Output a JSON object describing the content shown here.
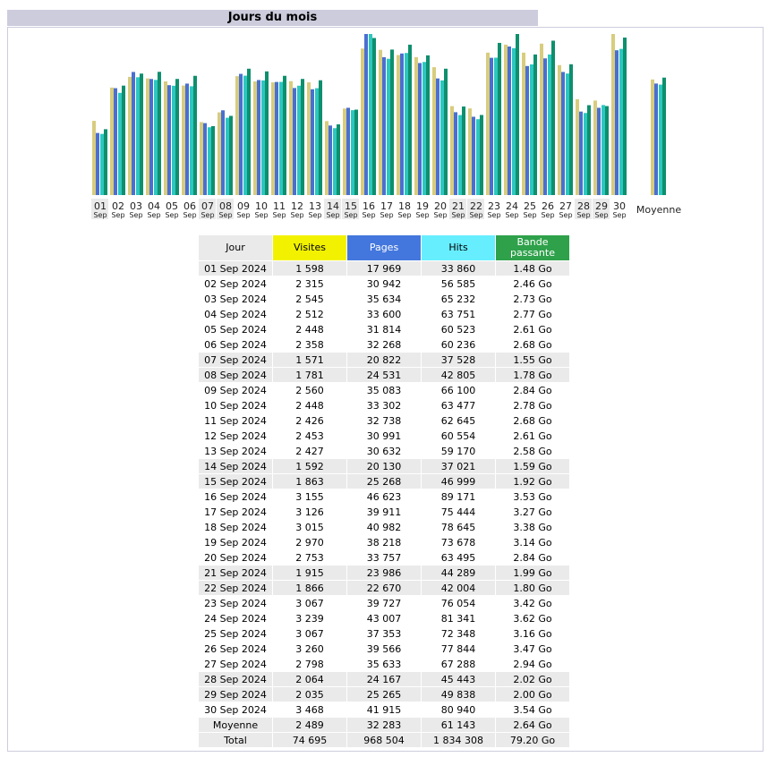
{
  "section_title": "Jours du mois",
  "colors": {
    "visites": "#d8cc7e",
    "pages": "#4a6fd1",
    "hits": "#2cc7c0",
    "bande": "#0e8f6d",
    "weekend": "#eaeaea"
  },
  "table": {
    "headers": [
      "Jour",
      "Visites",
      "Pages",
      "Hits",
      "Bande passante"
    ],
    "rows": [
      {
        "day": "01 Sep 2024",
        "visites": "1 598",
        "pages": "17 969",
        "hits": "33 860",
        "bande": "1.48 Go",
        "weekend": true
      },
      {
        "day": "02 Sep 2024",
        "visites": "2 315",
        "pages": "30 942",
        "hits": "56 585",
        "bande": "2.46 Go",
        "weekend": false
      },
      {
        "day": "03 Sep 2024",
        "visites": "2 545",
        "pages": "35 634",
        "hits": "65 232",
        "bande": "2.73 Go",
        "weekend": false
      },
      {
        "day": "04 Sep 2024",
        "visites": "2 512",
        "pages": "33 600",
        "hits": "63 751",
        "bande": "2.77 Go",
        "weekend": false
      },
      {
        "day": "05 Sep 2024",
        "visites": "2 448",
        "pages": "31 814",
        "hits": "60 523",
        "bande": "2.61 Go",
        "weekend": false
      },
      {
        "day": "06 Sep 2024",
        "visites": "2 358",
        "pages": "32 268",
        "hits": "60 236",
        "bande": "2.68 Go",
        "weekend": false
      },
      {
        "day": "07 Sep 2024",
        "visites": "1 571",
        "pages": "20 822",
        "hits": "37 528",
        "bande": "1.55 Go",
        "weekend": true
      },
      {
        "day": "08 Sep 2024",
        "visites": "1 781",
        "pages": "24 531",
        "hits": "42 805",
        "bande": "1.78 Go",
        "weekend": true
      },
      {
        "day": "09 Sep 2024",
        "visites": "2 560",
        "pages": "35 083",
        "hits": "66 100",
        "bande": "2.84 Go",
        "weekend": false
      },
      {
        "day": "10 Sep 2024",
        "visites": "2 448",
        "pages": "33 302",
        "hits": "63 477",
        "bande": "2.78 Go",
        "weekend": false
      },
      {
        "day": "11 Sep 2024",
        "visites": "2 426",
        "pages": "32 738",
        "hits": "62 645",
        "bande": "2.68 Go",
        "weekend": false
      },
      {
        "day": "12 Sep 2024",
        "visites": "2 453",
        "pages": "30 991",
        "hits": "60 554",
        "bande": "2.61 Go",
        "weekend": false
      },
      {
        "day": "13 Sep 2024",
        "visites": "2 427",
        "pages": "30 632",
        "hits": "59 170",
        "bande": "2.58 Go",
        "weekend": false
      },
      {
        "day": "14 Sep 2024",
        "visites": "1 592",
        "pages": "20 130",
        "hits": "37 021",
        "bande": "1.59 Go",
        "weekend": true
      },
      {
        "day": "15 Sep 2024",
        "visites": "1 863",
        "pages": "25 268",
        "hits": "46 999",
        "bande": "1.92 Go",
        "weekend": true
      },
      {
        "day": "16 Sep 2024",
        "visites": "3 155",
        "pages": "46 623",
        "hits": "89 171",
        "bande": "3.53 Go",
        "weekend": false
      },
      {
        "day": "17 Sep 2024",
        "visites": "3 126",
        "pages": "39 911",
        "hits": "75 444",
        "bande": "3.27 Go",
        "weekend": false
      },
      {
        "day": "18 Sep 2024",
        "visites": "3 015",
        "pages": "40 982",
        "hits": "78 645",
        "bande": "3.38 Go",
        "weekend": false
      },
      {
        "day": "19 Sep 2024",
        "visites": "2 970",
        "pages": "38 218",
        "hits": "73 678",
        "bande": "3.14 Go",
        "weekend": false
      },
      {
        "day": "20 Sep 2024",
        "visites": "2 753",
        "pages": "33 757",
        "hits": "63 495",
        "bande": "2.84 Go",
        "weekend": false
      },
      {
        "day": "21 Sep 2024",
        "visites": "1 915",
        "pages": "23 986",
        "hits": "44 289",
        "bande": "1.99 Go",
        "weekend": true
      },
      {
        "day": "22 Sep 2024",
        "visites": "1 866",
        "pages": "22 670",
        "hits": "42 004",
        "bande": "1.80 Go",
        "weekend": true
      },
      {
        "day": "23 Sep 2024",
        "visites": "3 067",
        "pages": "39 727",
        "hits": "76 054",
        "bande": "3.42 Go",
        "weekend": false
      },
      {
        "day": "24 Sep 2024",
        "visites": "3 239",
        "pages": "43 007",
        "hits": "81 341",
        "bande": "3.62 Go",
        "weekend": false
      },
      {
        "day": "25 Sep 2024",
        "visites": "3 067",
        "pages": "37 353",
        "hits": "72 348",
        "bande": "3.16 Go",
        "weekend": false
      },
      {
        "day": "26 Sep 2024",
        "visites": "3 260",
        "pages": "39 566",
        "hits": "77 844",
        "bande": "3.47 Go",
        "weekend": false
      },
      {
        "day": "27 Sep 2024",
        "visites": "2 798",
        "pages": "35 633",
        "hits": "67 288",
        "bande": "2.94 Go",
        "weekend": false
      },
      {
        "day": "28 Sep 2024",
        "visites": "2 064",
        "pages": "24 167",
        "hits": "45 443",
        "bande": "2.02 Go",
        "weekend": true
      },
      {
        "day": "29 Sep 2024",
        "visites": "2 035",
        "pages": "25 265",
        "hits": "49 838",
        "bande": "2.00 Go",
        "weekend": true
      },
      {
        "day": "30 Sep 2024",
        "visites": "3 468",
        "pages": "41 915",
        "hits": "80 940",
        "bande": "3.54 Go",
        "weekend": false
      }
    ],
    "average": {
      "day": "Moyenne",
      "visites": "2 489",
      "pages": "32 283",
      "hits": "61 143",
      "bande": "2.64 Go"
    },
    "total": {
      "day": "Total",
      "visites": "74 695",
      "pages": "968 504",
      "hits": "1 834 308",
      "bande": "79.20 Go"
    }
  },
  "chart_data": {
    "type": "bar",
    "categories": [
      "01",
      "02",
      "03",
      "04",
      "05",
      "06",
      "07",
      "08",
      "09",
      "10",
      "11",
      "12",
      "13",
      "14",
      "15",
      "16",
      "17",
      "18",
      "19",
      "20",
      "21",
      "22",
      "23",
      "24",
      "25",
      "26",
      "27",
      "28",
      "29",
      "30"
    ],
    "category_sublabel": "Sep",
    "weekend_days": [
      "01",
      "07",
      "08",
      "14",
      "15",
      "21",
      "22",
      "28",
      "29"
    ],
    "average_label": "Moyenne",
    "series": [
      {
        "name": "Visites",
        "values": [
          1598,
          2315,
          2545,
          2512,
          2448,
          2358,
          1571,
          1781,
          2560,
          2448,
          2426,
          2453,
          2427,
          1592,
          1863,
          3155,
          3126,
          3015,
          2970,
          2753,
          1915,
          1866,
          3067,
          3239,
          3067,
          3260,
          2798,
          2064,
          2035,
          3468
        ],
        "average": 2489
      },
      {
        "name": "Pages",
        "values": [
          17969,
          30942,
          35634,
          33600,
          31814,
          32268,
          20822,
          24531,
          35083,
          33302,
          32738,
          30991,
          30632,
          20130,
          25268,
          46623,
          39911,
          40982,
          38218,
          33757,
          23986,
          22670,
          39727,
          43007,
          37353,
          39566,
          35633,
          24167,
          25265,
          41915
        ],
        "average": 32283
      },
      {
        "name": "Hits",
        "values": [
          33860,
          56585,
          65232,
          63751,
          60523,
          60236,
          37528,
          42805,
          66100,
          63477,
          62645,
          60554,
          59170,
          37021,
          46999,
          89171,
          75444,
          78645,
          73678,
          63495,
          44289,
          42004,
          76054,
          81341,
          72348,
          77844,
          67288,
          45443,
          49838,
          80940
        ],
        "average": 61143
      },
      {
        "name": "Bande passante",
        "values": [
          1.48,
          2.46,
          2.73,
          2.77,
          2.61,
          2.68,
          1.55,
          1.78,
          2.84,
          2.78,
          2.68,
          2.61,
          2.58,
          1.59,
          1.92,
          3.53,
          3.27,
          3.38,
          3.14,
          2.84,
          1.99,
          1.8,
          3.42,
          3.62,
          3.16,
          3.47,
          2.94,
          2.02,
          2.0,
          3.54
        ],
        "average": 2.64
      }
    ]
  }
}
